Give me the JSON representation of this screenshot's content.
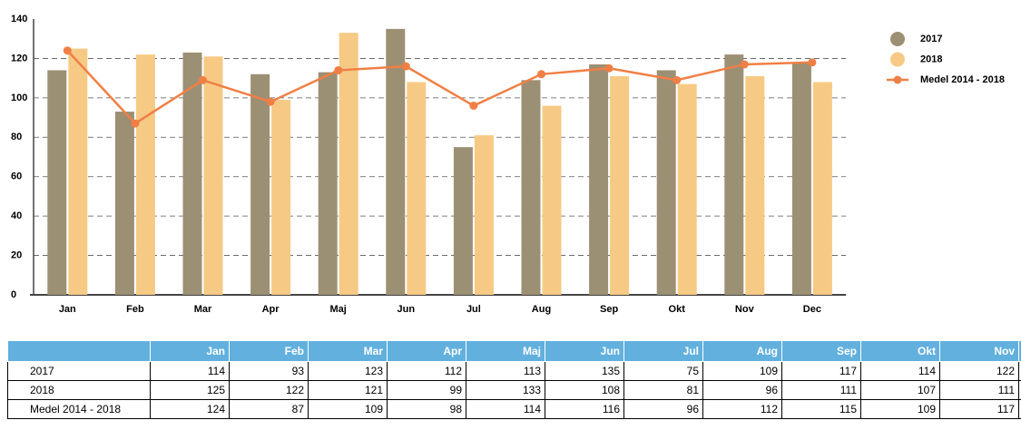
{
  "chart_data": {
    "type": "bar",
    "categories": [
      "Jan",
      "Feb",
      "Mar",
      "Apr",
      "Maj",
      "Jun",
      "Jul",
      "Aug",
      "Sep",
      "Okt",
      "Nov",
      "Dec"
    ],
    "series": [
      {
        "name": "2017",
        "color": "#9c9074",
        "values": [
          114,
          93,
          123,
          112,
          113,
          135,
          75,
          109,
          117,
          114,
          122,
          118
        ]
      },
      {
        "name": "2018",
        "color": "#f6ca84",
        "values": [
          125,
          122,
          121,
          99,
          133,
          108,
          81,
          96,
          111,
          107,
          111,
          108
        ]
      },
      {
        "name": "Medel 2014 - 2018",
        "type": "line",
        "color": "#f07f45",
        "values": [
          124,
          87,
          109,
          98,
          114,
          116,
          96,
          112,
          115,
          109,
          117,
          118
        ]
      }
    ],
    "ylim": [
      0,
      140
    ],
    "yticks": [
      0,
      20,
      40,
      60,
      80,
      100,
      120,
      140
    ],
    "grid": true,
    "legend": "right"
  }
}
